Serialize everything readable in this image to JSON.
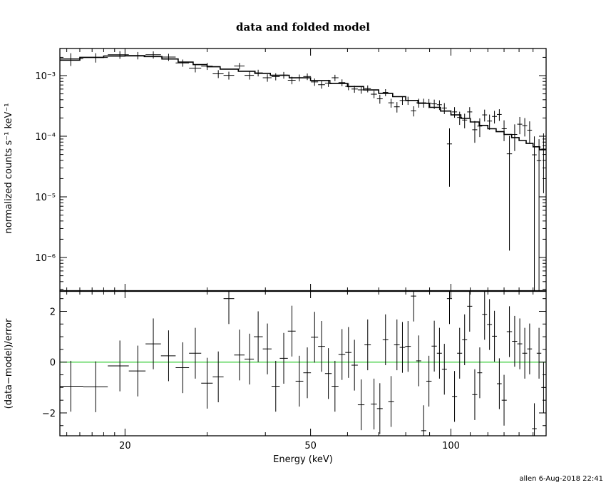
{
  "title": "data and folded model",
  "footer": "allen  6-Aug-2018 22:41",
  "chart_data": [
    {
      "type": "scatter",
      "panel": "spectrum",
      "title": "data and folded model",
      "ylabel": "normalized counts s⁻¹ keV⁻¹",
      "xlabel": "",
      "xscale": "log",
      "yscale": "log",
      "xlim": [
        14.5,
        160
      ],
      "ylim": [
        2.8e-07,
        0.0028
      ],
      "ytick_labels": [
        "10⁻³",
        "10⁻⁴",
        "10⁻⁵",
        "10⁻⁶"
      ],
      "series": [
        {
          "name": "",
          "role": "data",
          "x": [
            15.3,
            17.3,
            19.5,
            21.3,
            23.0,
            24.8,
            26.6,
            28.3,
            30.0,
            31.7,
            33.4,
            35.2,
            37.0,
            38.6,
            40.4,
            42.1,
            43.8,
            45.6,
            47.3,
            49.2,
            51.0,
            52.8,
            54.6,
            56.4,
            58.4,
            60.3,
            62.1,
            64.2,
            66.3,
            68.4,
            70.4,
            72.4,
            74.4,
            76.6,
            78.7,
            80.9,
            83.2,
            85.3,
            87.4,
            89.7,
            92.1,
            94.5,
            96.8,
            99.3,
            101.8,
            104.4,
            107.0,
            109.7,
            112.5,
            115.3,
            118.1,
            121.0,
            124.0,
            127.0,
            130.0,
            133.5,
            137.0,
            140.5,
            144.0,
            147.5,
            151.0,
            154.5,
            158.0
          ],
          "y": [
            0.00189,
            0.00199,
            0.00221,
            0.00215,
            0.00221,
            0.00202,
            0.00162,
            0.00133,
            0.00143,
            0.00107,
            0.00101,
            0.00144,
            0.00101,
            0.00111,
            0.000922,
            0.000965,
            0.00102,
            0.000839,
            0.000922,
            0.000965,
            0.000787,
            0.000708,
            0.000751,
            0.000922,
            0.000767,
            0.000664,
            0.000601,
            0.000582,
            0.000609,
            0.000494,
            0.000414,
            0.000528,
            0.000356,
            0.000306,
            0.000389,
            0.000389,
            0.000262,
            0.000356,
            0.000356,
            0.000351,
            0.000342,
            0.000331,
            0.000292,
            7.47e-05,
            0.000252,
            0.000204,
            0.000185,
            0.000252,
            0.000128,
            0.000147,
            0.000225,
            0.000178,
            0.000212,
            0.000229,
            0.000133,
            5.13e-05,
            0.000107,
            0.000158,
            0.000149,
            0.000126,
            4.94e-05,
            3.95e-05,
            6.15e-05
          ],
          "yerr": [
            0.00045,
            0.00035,
            0.00032,
            0.0003,
            0.0003,
            0.00027,
            0.00022,
            0.0002,
            0.00019,
            0.00016,
            0.00015,
            0.00018,
            0.00015,
            0.00014,
            0.00013,
            0.00013,
            0.00013,
            0.00012,
            0.00012,
            0.00012,
            0.00011,
            0.0001,
            0.0001,
            0.00011,
            0.0001,
            9e-05,
            8e-05,
            8e-05,
            8e-05,
            7e-05,
            7e-05,
            7e-05,
            6e-05,
            6e-05,
            6e-05,
            6e-05,
            5e-05,
            6e-05,
            6e-05,
            6e-05,
            6e-05,
            6e-05,
            6e-05,
            6e-05,
            5e-05,
            5e-05,
            5e-05,
            5e-05,
            5e-05,
            5e-05,
            5e-05,
            5e-05,
            5e-05,
            5e-05,
            5e-05,
            5e-05,
            5e-05,
            5e-05,
            5e-05,
            5e-05,
            5e-05,
            5e-05,
            5e-05
          ]
        },
        {
          "name": "",
          "role": "folded-model",
          "x": [
            14.5,
            16.0,
            18.0,
            20.0,
            22.0,
            24.0,
            26.0,
            28.0,
            30.0,
            32.0,
            35.0,
            38.0,
            41.0,
            45.0,
            50.0,
            55.0,
            60.0,
            65.0,
            70.0,
            75.0,
            80.0,
            85.0,
            90.0,
            95.0,
            100.0,
            105.0,
            110.0,
            115.0,
            120.0,
            125.0,
            130.0,
            135.0,
            140.0,
            145.0,
            150.0,
            155.0,
            160.0
          ],
          "y": [
            0.0018,
            0.002,
            0.0021,
            0.00212,
            0.00206,
            0.00188,
            0.00167,
            0.00152,
            0.0014,
            0.00128,
            0.00118,
            0.00109,
            0.00101,
            0.00092,
            0.00083,
            0.00074,
            0.00066,
            0.00058,
            0.00051,
            0.00045,
            0.00039,
            0.00035,
            0.0003,
            0.00026,
            0.000225,
            0.000197,
            0.000172,
            0.000151,
            0.000133,
            0.000119,
            0.000107,
            9.5e-05,
            8.5e-05,
            7.6e-05,
            6.7e-05,
            6e-05,
            5.2e-05
          ]
        }
      ]
    },
    {
      "type": "scatter",
      "panel": "residuals",
      "xlabel": "Energy (keV)",
      "ylabel": "(data−model)/error",
      "xscale": "log",
      "xlim": [
        14.5,
        160
      ],
      "ylim": [
        -2.9,
        2.8
      ],
      "xtick_labels": [
        "20",
        "50",
        "100"
      ],
      "xticks": [
        20,
        50,
        100
      ],
      "ytick_labels": [
        "2",
        "0",
        "−2"
      ],
      "yticks": [
        2,
        0,
        -2
      ],
      "reference_line": {
        "y": 0,
        "color": "#33cc33"
      },
      "series": [
        {
          "name": "",
          "x": [
            15.3,
            17.3,
            19.5,
            21.3,
            23.0,
            24.8,
            26.6,
            28.3,
            30.0,
            31.7,
            33.4,
            35.2,
            37.0,
            38.6,
            40.4,
            42.1,
            43.8,
            45.6,
            47.3,
            49.2,
            51.0,
            52.8,
            54.6,
            56.4,
            58.4,
            60.3,
            62.1,
            64.2,
            66.3,
            68.4,
            70.4,
            72.4,
            74.4,
            76.6,
            78.7,
            80.9,
            83.2,
            85.3,
            87.4,
            89.7,
            92.1,
            94.5,
            96.8,
            99.3,
            101.8,
            104.4,
            107.0,
            109.7,
            112.5,
            115.3,
            118.1,
            121.0,
            124.0,
            127.0,
            130.0,
            133.5,
            137.0,
            140.5,
            144.0,
            147.5,
            151.0,
            154.5,
            158.0
          ],
          "y": [
            -0.95,
            -0.97,
            -0.15,
            -0.35,
            0.72,
            0.25,
            -0.22,
            0.35,
            -0.83,
            -0.58,
            2.5,
            0.28,
            0.12,
            1.0,
            0.52,
            -0.95,
            0.15,
            1.22,
            -0.75,
            -0.42,
            0.98,
            0.62,
            -0.45,
            -0.95,
            0.3,
            0.38,
            -0.12,
            -1.68,
            0.68,
            -1.65,
            -1.83,
            0.88,
            -1.55,
            0.68,
            0.58,
            0.62,
            2.6,
            0.05,
            -2.7,
            -0.75,
            0.63,
            0.35,
            -0.28,
            2.5,
            -1.35,
            0.35,
            0.88,
            2.2,
            -1.28,
            -0.42,
            1.88,
            1.48,
            1.02,
            -0.85,
            -1.5,
            1.2,
            0.82,
            0.72,
            0.35,
            0.52,
            -2.62,
            0.35,
            -1.0
          ],
          "yerr": [
            1,
            1,
            1,
            1,
            1,
            1,
            1,
            1,
            1,
            1,
            1,
            1,
            1,
            1,
            1,
            1,
            1,
            1,
            1,
            1,
            1,
            1,
            1,
            1,
            1,
            1,
            1,
            1,
            1,
            1,
            1,
            1,
            1,
            1,
            1,
            1,
            1,
            1,
            1,
            1,
            1,
            1,
            1,
            1,
            1,
            1,
            1,
            1,
            1,
            1,
            1,
            1,
            1,
            1,
            1,
            1,
            1,
            1,
            1,
            1,
            1,
            1,
            1
          ]
        }
      ]
    }
  ]
}
